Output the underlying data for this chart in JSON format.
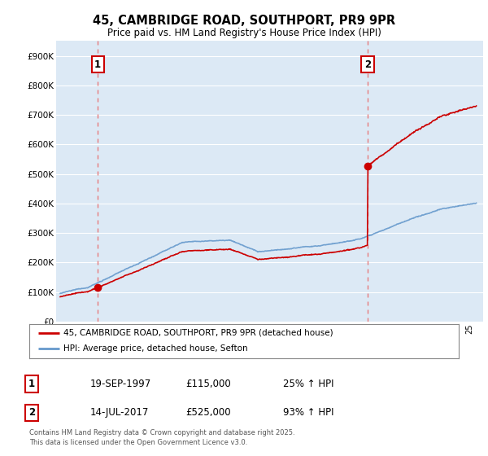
{
  "title": "45, CAMBRIDGE ROAD, SOUTHPORT, PR9 9PR",
  "subtitle": "Price paid vs. HM Land Registry's House Price Index (HPI)",
  "background_color": "#ffffff",
  "plot_bg_color": "#dce9f5",
  "grid_color": "#ffffff",
  "ylim": [
    0,
    950000
  ],
  "yticks": [
    0,
    100000,
    200000,
    300000,
    400000,
    500000,
    600000,
    700000,
    800000,
    900000
  ],
  "ytick_labels": [
    "£0",
    "£100K",
    "£200K",
    "£300K",
    "£400K",
    "£500K",
    "£600K",
    "£700K",
    "£800K",
    "£900K"
  ],
  "sale1_price": 115000,
  "sale2_price": 525000,
  "sale_color": "#cc0000",
  "hpi_color": "#6699cc",
  "vline_color": "#e87070",
  "legend_sale_label": "45, CAMBRIDGE ROAD, SOUTHPORT, PR9 9PR (detached house)",
  "legend_hpi_label": "HPI: Average price, detached house, Sefton",
  "table_row1": [
    "1",
    "19-SEP-1997",
    "£115,000",
    "25% ↑ HPI"
  ],
  "table_row2": [
    "2",
    "14-JUL-2017",
    "£525,000",
    "93% ↑ HPI"
  ],
  "footer": "Contains HM Land Registry data © Crown copyright and database right 2025.\nThis data is licensed under the Open Government Licence v3.0.",
  "sale1_year": 1997.75,
  "sale2_year": 2017.54
}
